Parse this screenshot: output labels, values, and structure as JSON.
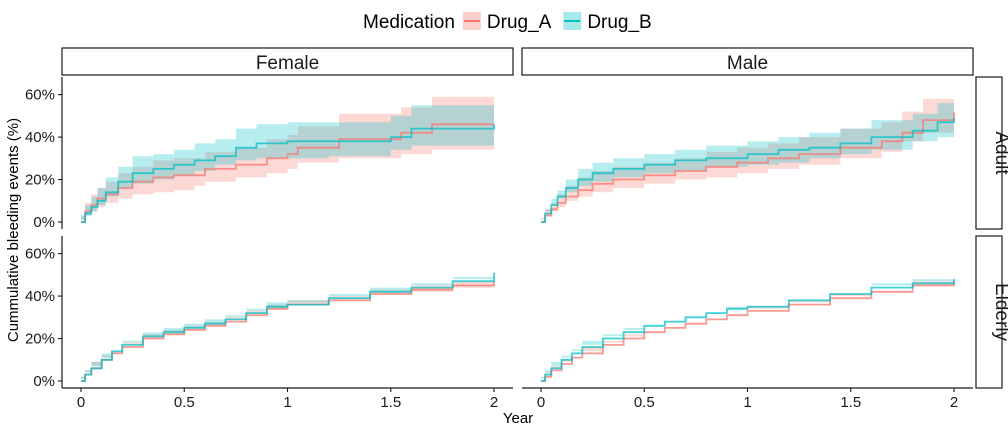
{
  "chart_data": {
    "type": "line",
    "style": "step-with-confidence-band",
    "xlabel": "Year",
    "ylabel": "Cummulative bleeding events (%)",
    "xlim": [
      0,
      2
    ],
    "ylim": [
      0,
      0.65
    ],
    "x_ticks": [
      0,
      0.5,
      1,
      1.5,
      2
    ],
    "x_tick_labels": [
      "0",
      "0.5",
      "1",
      "1.5",
      "2"
    ],
    "y_ticks": [
      0,
      0.2,
      0.4,
      0.6
    ],
    "y_tick_labels": [
      "0%",
      "20%",
      "40%",
      "60%"
    ],
    "grid": false,
    "legend": {
      "title": "Medication",
      "placement": "top",
      "entries": [
        {
          "name": "Drug_A",
          "color": "#F8766D"
        },
        {
          "name": "Drug_B",
          "color": "#00BFC4"
        }
      ]
    },
    "facet_columns": [
      "Female",
      "Male"
    ],
    "facet_rows": [
      "Adult",
      "Elderly"
    ],
    "panels": [
      {
        "col": "Female",
        "row": "Adult",
        "series": [
          {
            "name": "Drug_A",
            "x": [
              0,
              0.02,
              0.05,
              0.08,
              0.12,
              0.18,
              0.25,
              0.35,
              0.45,
              0.55,
              0.6,
              0.75,
              0.9,
              1.0,
              1.05,
              1.25,
              1.55,
              1.7,
              2.0
            ],
            "y": [
              0,
              0.05,
              0.08,
              0.11,
              0.13,
              0.16,
              0.19,
              0.21,
              0.22,
              0.22,
              0.25,
              0.27,
              0.3,
              0.32,
              0.35,
              0.39,
              0.42,
              0.46,
              0.46
            ],
            "lower": [
              0,
              0.01,
              0.03,
              0.05,
              0.07,
              0.09,
              0.11,
              0.13,
              0.14,
              0.15,
              0.17,
              0.19,
              0.21,
              0.23,
              0.25,
              0.28,
              0.3,
              0.32,
              0.34
            ],
            "upper": [
              0.03,
              0.09,
              0.13,
              0.16,
              0.19,
              0.23,
              0.26,
              0.29,
              0.3,
              0.3,
              0.33,
              0.35,
              0.39,
              0.41,
              0.45,
              0.51,
              0.54,
              0.59,
              0.59
            ]
          },
          {
            "name": "Drug_B",
            "x": [
              0,
              0.02,
              0.05,
              0.08,
              0.12,
              0.18,
              0.25,
              0.35,
              0.45,
              0.55,
              0.65,
              0.75,
              0.85,
              1.0,
              1.2,
              1.5,
              1.6,
              2.0
            ],
            "y": [
              0,
              0.04,
              0.07,
              0.1,
              0.14,
              0.19,
              0.23,
              0.25,
              0.27,
              0.29,
              0.31,
              0.35,
              0.37,
              0.38,
              0.38,
              0.4,
              0.44,
              0.46
            ],
            "lower": [
              0,
              0.01,
              0.03,
              0.05,
              0.08,
              0.12,
              0.16,
              0.18,
              0.2,
              0.22,
              0.24,
              0.27,
              0.29,
              0.3,
              0.3,
              0.31,
              0.34,
              0.36
            ],
            "upper": [
              0.03,
              0.08,
              0.12,
              0.16,
              0.21,
              0.26,
              0.31,
              0.32,
              0.34,
              0.37,
              0.39,
              0.44,
              0.46,
              0.47,
              0.47,
              0.5,
              0.55,
              0.57
            ]
          }
        ]
      },
      {
        "col": "Male",
        "row": "Adult",
        "series": [
          {
            "name": "Drug_A",
            "x": [
              0,
              0.02,
              0.05,
              0.08,
              0.12,
              0.18,
              0.25,
              0.35,
              0.5,
              0.65,
              0.8,
              0.95,
              1.1,
              1.25,
              1.45,
              1.65,
              1.75,
              1.85,
              2.0
            ],
            "y": [
              0,
              0.03,
              0.06,
              0.09,
              0.12,
              0.15,
              0.18,
              0.2,
              0.22,
              0.24,
              0.26,
              0.28,
              0.3,
              0.32,
              0.35,
              0.38,
              0.42,
              0.48,
              0.52
            ],
            "lower": [
              0,
              0.01,
              0.03,
              0.05,
              0.07,
              0.1,
              0.12,
              0.14,
              0.16,
              0.18,
              0.2,
              0.21,
              0.23,
              0.25,
              0.27,
              0.3,
              0.33,
              0.38,
              0.42
            ],
            "upper": [
              0.02,
              0.06,
              0.09,
              0.13,
              0.17,
              0.21,
              0.24,
              0.26,
              0.28,
              0.3,
              0.33,
              0.35,
              0.37,
              0.4,
              0.44,
              0.47,
              0.52,
              0.58,
              0.63
            ]
          },
          {
            "name": "Drug_B",
            "x": [
              0,
              0.02,
              0.05,
              0.08,
              0.12,
              0.18,
              0.25,
              0.35,
              0.5,
              0.65,
              0.8,
              1.0,
              1.15,
              1.3,
              1.45,
              1.6,
              1.8,
              1.92,
              2.0
            ],
            "y": [
              0,
              0.04,
              0.08,
              0.12,
              0.16,
              0.2,
              0.23,
              0.25,
              0.27,
              0.29,
              0.3,
              0.32,
              0.34,
              0.35,
              0.37,
              0.4,
              0.43,
              0.47,
              0.49
            ],
            "lower": [
              0,
              0.02,
              0.05,
              0.08,
              0.11,
              0.14,
              0.17,
              0.19,
              0.21,
              0.23,
              0.24,
              0.26,
              0.27,
              0.28,
              0.3,
              0.32,
              0.34,
              0.38,
              0.4
            ],
            "upper": [
              0.02,
              0.06,
              0.11,
              0.15,
              0.2,
              0.25,
              0.28,
              0.3,
              0.32,
              0.34,
              0.36,
              0.38,
              0.4,
              0.42,
              0.44,
              0.48,
              0.51,
              0.56,
              0.58
            ]
          }
        ]
      },
      {
        "col": "Female",
        "row": "Elderly",
        "series": [
          {
            "name": "Drug_A",
            "x": [
              0,
              0.02,
              0.05,
              0.1,
              0.15,
              0.2,
              0.3,
              0.4,
              0.5,
              0.6,
              0.7,
              0.8,
              0.9,
              1.0,
              1.2,
              1.4,
              1.6,
              1.8,
              2.0
            ],
            "y": [
              0,
              0.03,
              0.06,
              0.1,
              0.13,
              0.16,
              0.2,
              0.22,
              0.24,
              0.26,
              0.28,
              0.31,
              0.34,
              0.36,
              0.38,
              0.41,
              0.43,
              0.45,
              0.47
            ],
            "lower": [
              0,
              0.02,
              0.05,
              0.09,
              0.12,
              0.14,
              0.18,
              0.2,
              0.22,
              0.24,
              0.26,
              0.29,
              0.32,
              0.34,
              0.36,
              0.39,
              0.41,
              0.42,
              0.44
            ],
            "upper": [
              0.01,
              0.04,
              0.07,
              0.11,
              0.14,
              0.17,
              0.22,
              0.24,
              0.26,
              0.28,
              0.3,
              0.33,
              0.36,
              0.38,
              0.4,
              0.43,
              0.45,
              0.47,
              0.49
            ]
          },
          {
            "name": "Drug_B",
            "x": [
              0,
              0.02,
              0.05,
              0.1,
              0.15,
              0.2,
              0.3,
              0.4,
              0.5,
              0.6,
              0.7,
              0.8,
              0.9,
              1.0,
              1.2,
              1.4,
              1.6,
              1.8,
              2.0
            ],
            "y": [
              0,
              0.03,
              0.06,
              0.1,
              0.14,
              0.17,
              0.21,
              0.23,
              0.25,
              0.27,
              0.29,
              0.32,
              0.35,
              0.36,
              0.39,
              0.42,
              0.44,
              0.47,
              0.51
            ],
            "lower": [
              0,
              0.02,
              0.05,
              0.09,
              0.13,
              0.15,
              0.19,
              0.21,
              0.23,
              0.25,
              0.27,
              0.3,
              0.33,
              0.34,
              0.37,
              0.4,
              0.42,
              0.45,
              0.48
            ],
            "upper": [
              0.01,
              0.04,
              0.07,
              0.11,
              0.15,
              0.18,
              0.23,
              0.25,
              0.27,
              0.29,
              0.31,
              0.34,
              0.37,
              0.38,
              0.41,
              0.44,
              0.46,
              0.49,
              0.53
            ]
          }
        ]
      },
      {
        "col": "Male",
        "row": "Elderly",
        "series": [
          {
            "name": "Drug_A",
            "x": [
              0,
              0.02,
              0.05,
              0.1,
              0.15,
              0.2,
              0.3,
              0.4,
              0.5,
              0.6,
              0.7,
              0.8,
              0.9,
              1.0,
              1.2,
              1.4,
              1.6,
              1.8,
              2.0
            ],
            "y": [
              0,
              0.02,
              0.05,
              0.08,
              0.11,
              0.13,
              0.17,
              0.2,
              0.23,
              0.25,
              0.27,
              0.29,
              0.31,
              0.33,
              0.36,
              0.39,
              0.42,
              0.45,
              0.47
            ],
            "lower": [
              0,
              0.01,
              0.04,
              0.07,
              0.1,
              0.12,
              0.16,
              0.19,
              0.22,
              0.24,
              0.26,
              0.28,
              0.3,
              0.32,
              0.35,
              0.38,
              0.41,
              0.43,
              0.45
            ],
            "upper": [
              0.01,
              0.03,
              0.06,
              0.09,
              0.12,
              0.14,
              0.18,
              0.21,
              0.24,
              0.26,
              0.28,
              0.3,
              0.32,
              0.34,
              0.37,
              0.4,
              0.43,
              0.47,
              0.49
            ]
          },
          {
            "name": "Drug_B",
            "x": [
              0,
              0.02,
              0.05,
              0.1,
              0.15,
              0.2,
              0.3,
              0.4,
              0.5,
              0.6,
              0.7,
              0.8,
              0.9,
              1.0,
              1.2,
              1.4,
              1.6,
              1.8,
              2.0
            ],
            "y": [
              0,
              0.03,
              0.06,
              0.1,
              0.13,
              0.16,
              0.2,
              0.23,
              0.26,
              0.28,
              0.3,
              0.32,
              0.34,
              0.35,
              0.38,
              0.41,
              0.44,
              0.46,
              0.48
            ],
            "lower": [
              0,
              0.02,
              0.05,
              0.09,
              0.12,
              0.15,
              0.19,
              0.22,
              0.25,
              0.27,
              0.29,
              0.31,
              0.33,
              0.34,
              0.37,
              0.4,
              0.43,
              0.45,
              0.47
            ],
            "upper": [
              0.01,
              0.04,
              0.07,
              0.11,
              0.14,
              0.17,
              0.21,
              0.24,
              0.27,
              0.29,
              0.31,
              0.33,
              0.35,
              0.37,
              0.4,
              0.43,
              0.46,
              0.48,
              0.5
            ]
          }
        ]
      }
    ]
  }
}
